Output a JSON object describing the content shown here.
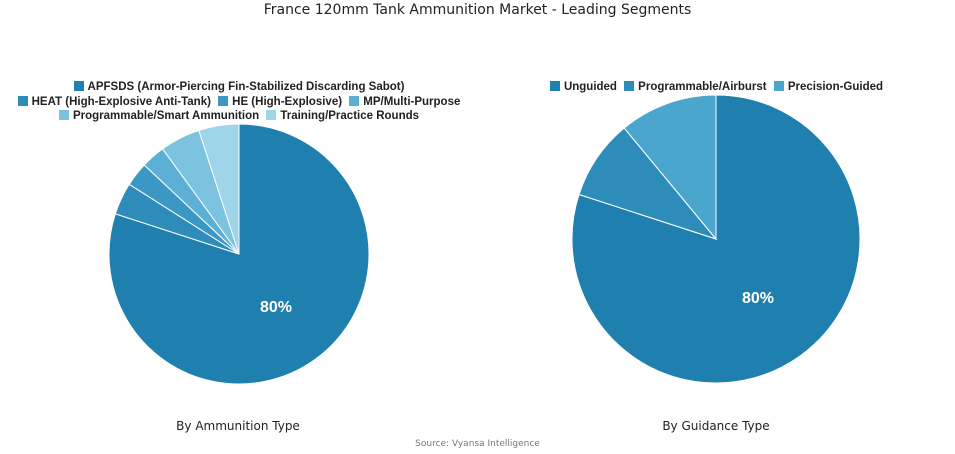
{
  "title": "France 120mm Tank Ammunition Market - Leading Segments",
  "source": "Source: Vyansa Intelligence",
  "chart_data": [
    {
      "type": "pie",
      "caption": "By Ammunition Type",
      "center_label": "80%",
      "slices": [
        {
          "name": "APFSDS (Armor-Piercing Fin-Stabilized Discarding Sabot)",
          "value": 80,
          "color": "#1f7fae"
        },
        {
          "name": "HEAT (High-Explosive Anti-Tank)",
          "value": 4,
          "color": "#2e8cbb"
        },
        {
          "name": "HE (High-Explosive)",
          "value": 3,
          "color": "#3b98c4"
        },
        {
          "name": "MP/Multi-Purpose",
          "value": 3,
          "color": "#5cb0d6"
        },
        {
          "name": "Programmable/Smart Ammunition",
          "value": 5,
          "color": "#7cc3e0"
        },
        {
          "name": "Training/Practice Rounds",
          "value": 5,
          "color": "#9fd5e8"
        }
      ]
    },
    {
      "type": "pie",
      "caption": "By Guidance Type",
      "center_label": "80%",
      "slices": [
        {
          "name": "Unguided",
          "value": 80,
          "color": "#1f7fae"
        },
        {
          "name": "Programmable/Airburst",
          "value": 9,
          "color": "#2e8cbb"
        },
        {
          "name": "Precision-Guided",
          "value": 11,
          "color": "#4aa6cc"
        }
      ]
    }
  ]
}
